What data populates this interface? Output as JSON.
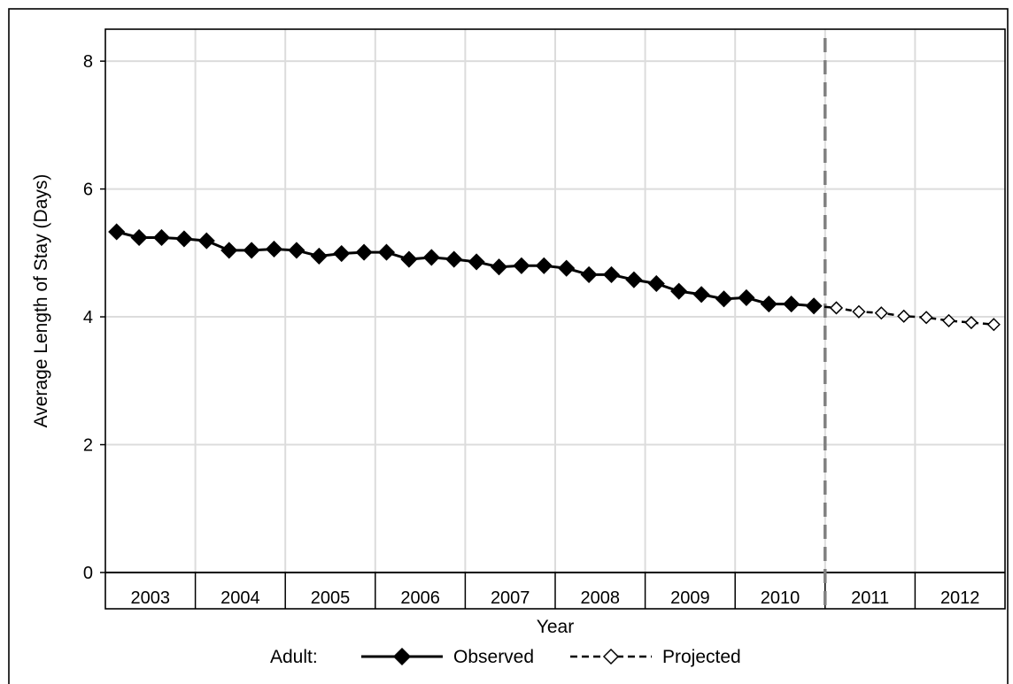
{
  "chart_data": {
    "type": "line",
    "xlabel": "Year",
    "ylabel": "Average Length of Stay (Days)",
    "ylim": [
      0,
      8.5
    ],
    "y_ticks": [
      "0",
      "2",
      "4",
      "6",
      "8"
    ],
    "x_categories": [
      "2003",
      "2004",
      "2005",
      "2006",
      "2007",
      "2008",
      "2009",
      "2010",
      "2011",
      "2012"
    ],
    "points_per_year": 4,
    "projection_starts": "2011",
    "grid": true,
    "legend": {
      "position": "bottom",
      "prefix": "Adult:",
      "entries": [
        "Observed",
        "Projected"
      ]
    },
    "series": [
      {
        "name": "Observed",
        "style": "solid",
        "marker": "filled-diamond",
        "x": [
          "2003 Q1",
          "2003 Q2",
          "2003 Q3",
          "2003 Q4",
          "2004 Q1",
          "2004 Q2",
          "2004 Q3",
          "2004 Q4",
          "2005 Q1",
          "2005 Q2",
          "2005 Q3",
          "2005 Q4",
          "2006 Q1",
          "2006 Q2",
          "2006 Q3",
          "2006 Q4",
          "2007 Q1",
          "2007 Q2",
          "2007 Q3",
          "2007 Q4",
          "2008 Q1",
          "2008 Q2",
          "2008 Q3",
          "2008 Q4",
          "2009 Q1",
          "2009 Q2",
          "2009 Q3",
          "2009 Q4",
          "2010 Q1",
          "2010 Q2",
          "2010 Q3",
          "2010 Q4"
        ],
        "values": [
          5.33,
          5.24,
          5.24,
          5.22,
          5.19,
          5.04,
          5.04,
          5.06,
          5.04,
          4.95,
          4.99,
          5.01,
          5.01,
          4.9,
          4.93,
          4.9,
          4.86,
          4.78,
          4.8,
          4.8,
          4.76,
          4.66,
          4.66,
          4.58,
          4.52,
          4.4,
          4.35,
          4.28,
          4.3,
          4.2,
          4.2,
          4.17
        ]
      },
      {
        "name": "Projected",
        "style": "dashed",
        "marker": "open-diamond",
        "x": [
          "2011 Q1",
          "2011 Q2",
          "2011 Q3",
          "2011 Q4",
          "2012 Q1",
          "2012 Q2",
          "2012 Q3",
          "2012 Q4"
        ],
        "values": [
          4.14,
          4.08,
          4.06,
          4.01,
          3.99,
          3.94,
          3.91,
          3.88
        ]
      }
    ],
    "colors": {
      "grid": "#dcdcdc",
      "line": "#000000",
      "divider": "#808080",
      "marker_fill_observed": "#000000",
      "marker_fill_projected": "#ffffff"
    }
  }
}
